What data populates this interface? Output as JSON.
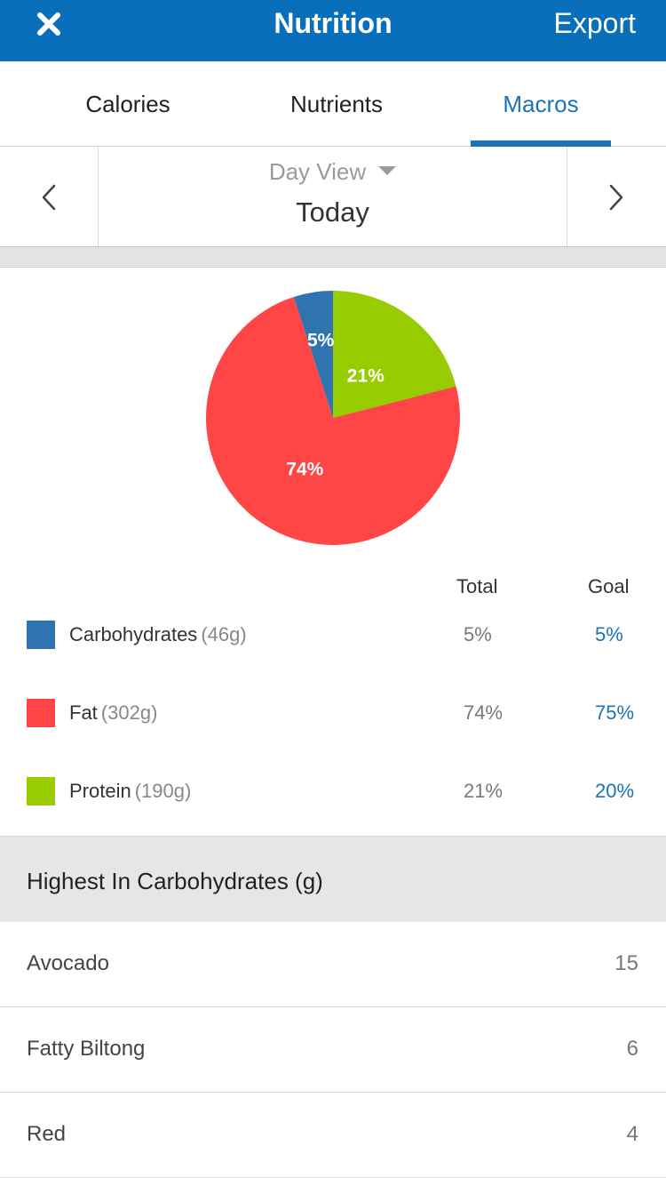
{
  "header": {
    "title": "Nutrition",
    "export_label": "Export",
    "close_icon": "close-icon",
    "background": "#0a6fba"
  },
  "tabs": [
    {
      "label": "Calories",
      "active": false
    },
    {
      "label": "Nutrients",
      "active": false
    },
    {
      "label": "Macros",
      "active": true
    }
  ],
  "date_nav": {
    "view_select": "Day View",
    "date": "Today",
    "prev_icon": "chevron-left-icon",
    "next_icon": "chevron-right-icon"
  },
  "chart_data": {
    "type": "pie",
    "slices": [
      {
        "name": "Protein",
        "value": 21,
        "label": "21%",
        "color": "#97cc00"
      },
      {
        "name": "Fat",
        "value": 74,
        "label": "74%",
        "color": "#ff4545"
      },
      {
        "name": "Carbohydrates",
        "value": 5,
        "label": "5%",
        "color": "#2f74b0"
      }
    ]
  },
  "macros": {
    "total_header": "Total",
    "goal_header": "Goal",
    "rows": [
      {
        "name": "Carbohydrates",
        "grams": "(46g)",
        "total": "5%",
        "goal": "5%",
        "color": "#2f74b0"
      },
      {
        "name": "Fat",
        "grams": "(302g)",
        "total": "74%",
        "goal": "75%",
        "color": "#ff4545"
      },
      {
        "name": "Protein",
        "grams": "(190g)",
        "total": "21%",
        "goal": "20%",
        "color": "#97cc00"
      }
    ]
  },
  "highest": {
    "title": "Highest In Carbohydrates (g)",
    "items": [
      {
        "name": "Avocado",
        "value": "15"
      },
      {
        "name": "Fatty Biltong",
        "value": "6"
      },
      {
        "name": "Red",
        "value": "4"
      }
    ]
  }
}
